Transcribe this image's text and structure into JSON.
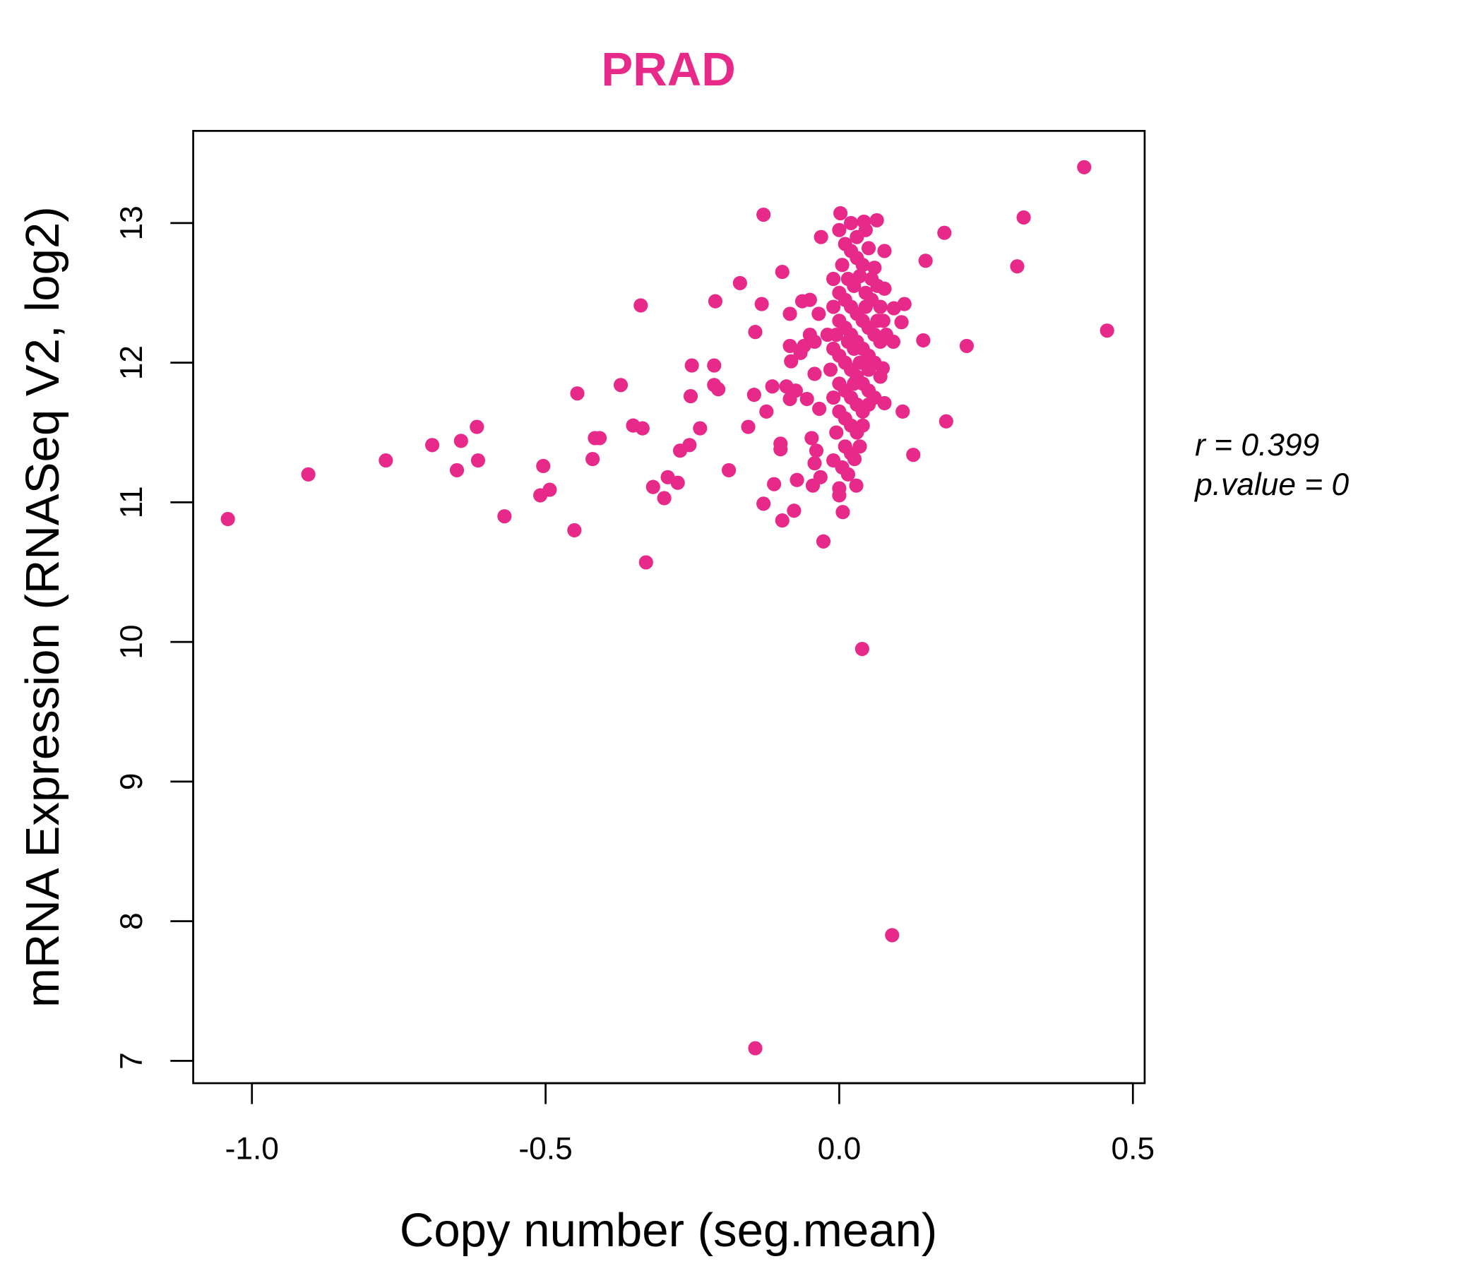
{
  "chart_data": {
    "type": "scatter",
    "title": "PRAD",
    "xlabel": "Copy number (seg.mean)",
    "ylabel": "mRNA Expression (RNASeq V2, log2)",
    "xlim": [
      -1.1,
      0.52
    ],
    "ylim": [
      6.84,
      13.66
    ],
    "x_ticks": [
      -1.0,
      -0.5,
      0.0,
      0.5
    ],
    "x_tick_labels": [
      "-1.0",
      "-0.5",
      "0.0",
      "0.5"
    ],
    "y_ticks": [
      7,
      8,
      9,
      10,
      11,
      12,
      13
    ],
    "y_tick_labels": [
      "7",
      "8",
      "9",
      "10",
      "11",
      "12",
      "13"
    ],
    "grid": false,
    "point_color": "#E7298A",
    "annotations": {
      "r": "r = 0.399",
      "p": "p.value = 0"
    },
    "points": [
      [
        -1.041,
        10.88
      ],
      [
        -0.904,
        11.2
      ],
      [
        -0.772,
        11.3
      ],
      [
        -0.693,
        11.41
      ],
      [
        -0.644,
        11.44
      ],
      [
        -0.651,
        11.23
      ],
      [
        -0.617,
        11.54
      ],
      [
        -0.615,
        11.3
      ],
      [
        -0.57,
        10.9
      ],
      [
        -0.504,
        11.26
      ],
      [
        -0.509,
        11.05
      ],
      [
        -0.493,
        11.09
      ],
      [
        -0.451,
        10.8
      ],
      [
        -0.446,
        11.78
      ],
      [
        -0.42,
        11.31
      ],
      [
        -0.416,
        11.46
      ],
      [
        -0.408,
        11.46
      ],
      [
        -0.372,
        11.84
      ],
      [
        -0.351,
        11.55
      ],
      [
        -0.338,
        12.41
      ],
      [
        -0.335,
        11.53
      ],
      [
        -0.329,
        10.57
      ],
      [
        -0.317,
        11.11
      ],
      [
        -0.292,
        11.18
      ],
      [
        -0.298,
        11.03
      ],
      [
        -0.275,
        11.14
      ],
      [
        -0.271,
        11.37
      ],
      [
        -0.255,
        11.41
      ],
      [
        -0.251,
        11.98
      ],
      [
        -0.253,
        11.76
      ],
      [
        -0.237,
        11.53
      ],
      [
        -0.213,
        11.98
      ],
      [
        -0.211,
        12.44
      ],
      [
        -0.213,
        11.84
      ],
      [
        -0.206,
        11.81
      ],
      [
        -0.188,
        11.23
      ],
      [
        -0.169,
        12.57
      ],
      [
        -0.155,
        11.54
      ],
      [
        -0.143,
        12.22
      ],
      [
        -0.145,
        11.77
      ],
      [
        -0.143,
        7.09
      ],
      [
        -0.132,
        12.42
      ],
      [
        -0.129,
        13.06
      ],
      [
        -0.129,
        10.99
      ],
      [
        -0.124,
        11.65
      ],
      [
        -0.114,
        11.83
      ],
      [
        -0.111,
        11.13
      ],
      [
        -0.1,
        11.38
      ],
      [
        -0.1,
        11.42
      ],
      [
        -0.097,
        12.65
      ],
      [
        -0.097,
        10.87
      ],
      [
        -0.09,
        11.83
      ],
      [
        -0.084,
        12.12
      ],
      [
        -0.084,
        12.35
      ],
      [
        -0.082,
        12.01
      ],
      [
        -0.077,
        10.94
      ],
      [
        -0.072,
        11.16
      ],
      [
        -0.074,
        11.8
      ],
      [
        -0.084,
        11.74
      ],
      [
        -0.063,
        12.44
      ],
      [
        -0.05,
        12.45
      ],
      [
        -0.06,
        12.12
      ],
      [
        -0.05,
        12.2
      ],
      [
        -0.042,
        11.92
      ],
      [
        -0.047,
        11.46
      ],
      [
        -0.045,
        11.12
      ],
      [
        -0.039,
        11.37
      ],
      [
        -0.042,
        11.28
      ],
      [
        -0.034,
        11.67
      ],
      [
        -0.032,
        11.18
      ],
      [
        -0.031,
        12.9
      ],
      [
        -0.035,
        12.35
      ],
      [
        -0.027,
        10.72
      ],
      [
        -0.055,
        11.74
      ],
      [
        -0.066,
        12.07
      ],
      [
        -0.042,
        12.15
      ],
      [
        0.039,
        9.95
      ],
      [
        0.09,
        7.9
      ],
      [
        0.077,
        12.8
      ],
      [
        0.064,
        13.02
      ],
      [
        0.042,
        13.01
      ],
      [
        0.002,
        13.07
      ],
      [
        0.077,
        12.53
      ],
      [
        0.092,
        12.15
      ],
      [
        0.093,
        12.39
      ],
      [
        0.106,
        12.29
      ],
      [
        0.108,
        11.65
      ],
      [
        0.111,
        12.42
      ],
      [
        0.126,
        11.34
      ],
      [
        0.143,
        12.16
      ],
      [
        0.147,
        12.73
      ],
      [
        0.179,
        12.93
      ],
      [
        0.182,
        11.58
      ],
      [
        0.217,
        12.12
      ],
      [
        0.303,
        12.69
      ],
      [
        0.314,
        13.04
      ],
      [
        0.417,
        13.4
      ],
      [
        0.456,
        12.23
      ],
      [
        0.077,
        11.71
      ],
      [
        0.006,
        10.93
      ],
      [
        0.029,
        11.12
      ],
      [
        0.026,
        11.31
      ],
      [
        0.0,
        11.05
      ],
      [
        0.074,
        11.96
      ],
      [
        0.0,
        12.95
      ],
      [
        0.01,
        12.85
      ],
      [
        0.02,
        12.8
      ],
      [
        0.03,
        12.75
      ],
      [
        0.04,
        12.7
      ],
      [
        0.05,
        12.82
      ],
      [
        0.06,
        12.68
      ],
      [
        0.015,
        12.6
      ],
      [
        0.025,
        12.55
      ],
      [
        0.035,
        12.62
      ],
      [
        0.045,
        12.5
      ],
      [
        0.055,
        12.45
      ],
      [
        -0.01,
        12.6
      ],
      [
        0.0,
        12.5
      ],
      [
        0.01,
        12.45
      ],
      [
        0.02,
        12.4
      ],
      [
        0.03,
        12.35
      ],
      [
        0.04,
        12.3
      ],
      [
        0.05,
        12.25
      ],
      [
        0.06,
        12.2
      ],
      [
        0.07,
        12.15
      ],
      [
        -0.01,
        12.4
      ],
      [
        0.0,
        12.3
      ],
      [
        0.01,
        12.25
      ],
      [
        0.02,
        12.2
      ],
      [
        0.03,
        12.15
      ],
      [
        0.04,
        12.1
      ],
      [
        0.05,
        12.05
      ],
      [
        0.06,
        12.0
      ],
      [
        0.065,
        12.3
      ],
      [
        -0.02,
        12.2
      ],
      [
        -0.01,
        12.1
      ],
      [
        0.0,
        12.05
      ],
      [
        0.01,
        12.0
      ],
      [
        0.02,
        11.95
      ],
      [
        0.03,
        11.9
      ],
      [
        0.04,
        11.85
      ],
      [
        0.05,
        11.8
      ],
      [
        -0.015,
        11.95
      ],
      [
        0.0,
        11.85
      ],
      [
        0.01,
        11.8
      ],
      [
        0.02,
        11.75
      ],
      [
        0.03,
        11.7
      ],
      [
        0.04,
        11.65
      ],
      [
        0.05,
        11.7
      ],
      [
        -0.01,
        11.75
      ],
      [
        0.0,
        11.65
      ],
      [
        0.01,
        11.6
      ],
      [
        0.02,
        11.55
      ],
      [
        0.03,
        11.5
      ],
      [
        -0.005,
        11.5
      ],
      [
        0.01,
        11.4
      ],
      [
        0.02,
        11.35
      ],
      [
        0.005,
        11.25
      ],
      [
        0.015,
        11.2
      ],
      [
        0.0,
        11.1
      ],
      [
        0.03,
        12.9
      ],
      [
        0.045,
        12.95
      ],
      [
        0.02,
        13.0
      ],
      [
        0.055,
        12.6
      ],
      [
        0.065,
        12.55
      ],
      [
        0.07,
        12.4
      ],
      [
        0.075,
        12.3
      ],
      [
        0.08,
        12.2
      ],
      [
        0.07,
        11.9
      ],
      [
        0.06,
        11.75
      ],
      [
        0.035,
        12.0
      ],
      [
        0.025,
        12.1
      ],
      [
        0.015,
        12.15
      ],
      [
        0.005,
        12.7
      ],
      [
        -0.005,
        12.2
      ],
      [
        0.035,
        11.4
      ],
      [
        0.04,
        11.55
      ],
      [
        -0.01,
        11.3
      ],
      [
        0.045,
        12.4
      ],
      [
        0.025,
        11.85
      ],
      [
        0.05,
        11.95
      ]
    ]
  }
}
